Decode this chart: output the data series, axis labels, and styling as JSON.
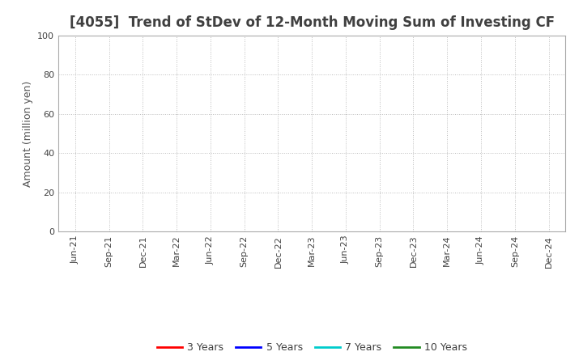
{
  "title": "[4055]  Trend of StDev of 12-Month Moving Sum of Investing CF",
  "ylabel": "Amount (million yen)",
  "ylim": [
    0,
    100
  ],
  "yticks": [
    0,
    20,
    40,
    60,
    80,
    100
  ],
  "x_labels": [
    "Jun-21",
    "Sep-21",
    "Dec-21",
    "Mar-22",
    "Jun-22",
    "Sep-22",
    "Dec-22",
    "Mar-23",
    "Jun-23",
    "Sep-23",
    "Dec-23",
    "Mar-24",
    "Jun-24",
    "Sep-24",
    "Dec-24"
  ],
  "legend_entries": [
    {
      "label": "3 Years",
      "color": "#ff0000",
      "linestyle": "-"
    },
    {
      "label": "5 Years",
      "color": "#0000ff",
      "linestyle": "-"
    },
    {
      "label": "7 Years",
      "color": "#00cccc",
      "linestyle": "-"
    },
    {
      "label": "10 Years",
      "color": "#228B22",
      "linestyle": "-"
    }
  ],
  "background_color": "#ffffff",
  "grid_color": "#aaaaaa",
  "title_color": "#404040",
  "axis_label_color": "#555555",
  "tick_label_color": "#404040",
  "title_fontsize": 12,
  "axis_label_fontsize": 9,
  "tick_fontsize": 8,
  "legend_fontsize": 9,
  "spine_color": "#aaaaaa"
}
